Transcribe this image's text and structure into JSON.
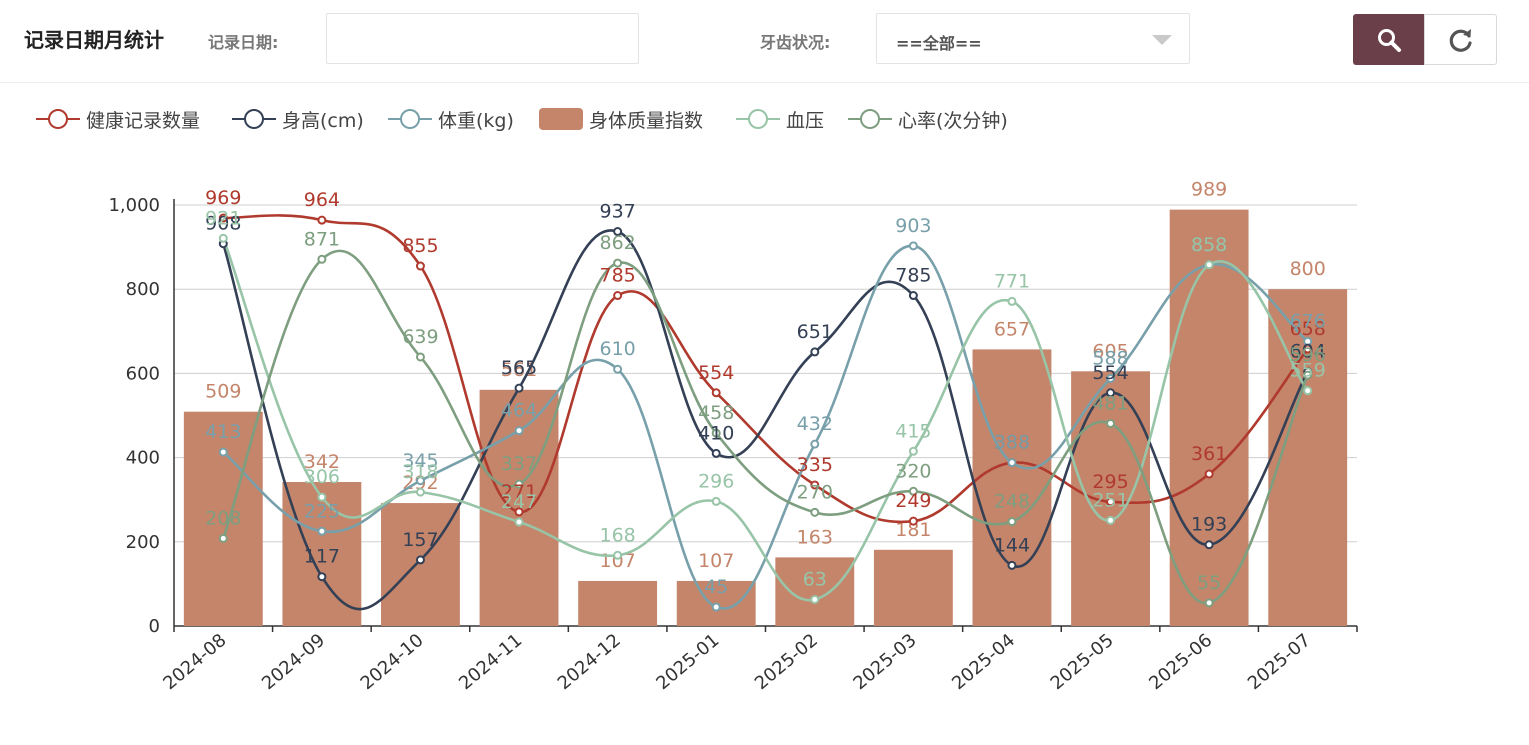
{
  "header": {
    "title": "记录日期月统计",
    "date_label": "记录日期:",
    "date_value": "",
    "dental_label": "牙齿状况:",
    "dental_select_value": "==全部=="
  },
  "buttons": {
    "search_icon": "search-icon",
    "reset_icon": "refresh-icon"
  },
  "colors": {
    "search_button": "#6b3f4a",
    "health_records": "#b03a2e",
    "height": "#344055",
    "weight": "#78a0aa",
    "bmi": "#c4856a",
    "blood_pressure": "#98c4a8",
    "heart_rate": "#7e9e80"
  },
  "chart_data": {
    "type": "bar+line",
    "categories": [
      "2024-08",
      "2024-09",
      "2024-10",
      "2024-11",
      "2024-12",
      "2025-01",
      "2025-02",
      "2025-03",
      "2025-04",
      "2025-05",
      "2025-06",
      "2025-07"
    ],
    "ylim": [
      0,
      1000
    ],
    "yticks": [
      "0",
      "200",
      "400",
      "600",
      "800",
      "1,000"
    ],
    "grid": true,
    "legend_position": "top-left",
    "series": [
      {
        "name": "健康记录数量",
        "type": "line",
        "color": "#b03a2e",
        "values": [
          969,
          964,
          855,
          271,
          785,
          554,
          335,
          249,
          388,
          295,
          361,
          658
        ]
      },
      {
        "name": "身高(cm)",
        "type": "line",
        "color": "#344055",
        "values": [
          908,
          117,
          157,
          565,
          937,
          410,
          651,
          785,
          144,
          554,
          193,
          604
        ]
      },
      {
        "name": "体重(kg)",
        "type": "line",
        "color": "#78a0aa",
        "values": [
          413,
          225,
          345,
          464,
          610,
          45,
          432,
          903,
          388,
          588,
          858,
          676
        ]
      },
      {
        "name": "身体质量指数",
        "type": "bar",
        "color": "#c4856a",
        "values": [
          509,
          342,
          292,
          561,
          107,
          107,
          163,
          181,
          657,
          605,
          989,
          800
        ]
      },
      {
        "name": "血压",
        "type": "line",
        "color": "#98c4a8",
        "values": [
          921,
          306,
          318,
          247,
          168,
          296,
          63,
          415,
          771,
          251,
          858,
          559
        ]
      },
      {
        "name": "心率(次分钟)",
        "type": "line",
        "color": "#7e9e80",
        "values": [
          208,
          871,
          639,
          337,
          862,
          458,
          270,
          320,
          248,
          481,
          55,
          596
        ]
      }
    ]
  }
}
